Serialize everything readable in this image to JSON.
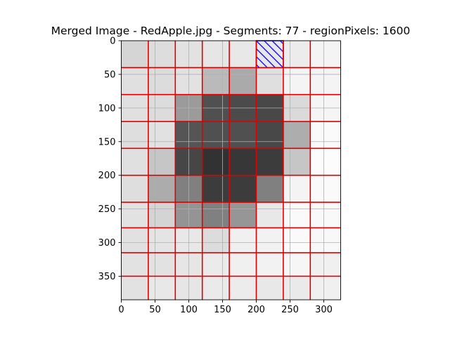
{
  "chart_data": {
    "type": "heatmap",
    "title": "Merged Image - RedApple.jpg - Segments: 77 - regionPixels: 1600",
    "xlim": [
      0,
      325
    ],
    "ylim": [
      385,
      0
    ],
    "y_inverted": true,
    "grid": true,
    "x_ticks": [
      0,
      50,
      100,
      150,
      200,
      250,
      300
    ],
    "y_ticks": [
      0,
      50,
      100,
      150,
      200,
      250,
      300,
      350
    ],
    "cell_size": 40,
    "image_size": [
      325,
      385
    ],
    "col_edges": [
      0,
      40,
      80,
      120,
      160,
      200,
      240,
      280,
      325
    ],
    "row_edges": [
      0,
      40,
      80,
      120,
      160,
      200,
      240,
      278,
      315,
      350,
      385
    ],
    "grayscale_values": [
      [
        213,
        221,
        226,
        230,
        232,
        232,
        236,
        244
      ],
      [
        224,
        220,
        226,
        186,
        170,
        223,
        244,
        244
      ],
      [
        224,
        220,
        155,
        80,
        75,
        72,
        218,
        245
      ],
      [
        222,
        225,
        85,
        80,
        80,
        72,
        173,
        250
      ],
      [
        224,
        198,
        70,
        50,
        55,
        60,
        198,
        252
      ],
      [
        222,
        172,
        128,
        60,
        60,
        128,
        244,
        250
      ],
      [
        226,
        212,
        148,
        128,
        150,
        232,
        250,
        249
      ],
      [
        225,
        228,
        232,
        220,
        240,
        242,
        250,
        248
      ],
      [
        226,
        226,
        230,
        235,
        240,
        242,
        246,
        240
      ],
      [
        226,
        232,
        230,
        234,
        236,
        232,
        234,
        240
      ]
    ],
    "highlighted_cell": {
      "x": [
        200,
        240
      ],
      "y": [
        0,
        40
      ],
      "style": "blue-hatch"
    },
    "segment_line_color": "#e00000",
    "hatch_color": "#0000ff",
    "grid_color": "#b0b0b0"
  }
}
